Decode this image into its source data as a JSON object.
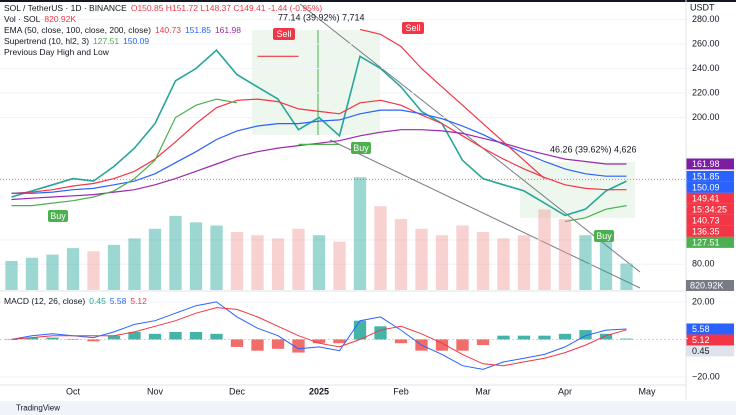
{
  "header": {
    "symbol": "SOL / TetherUS · 1D · BINANCE",
    "ohlc": "O150.85 H151.72 L148.37 C149.41 -1.44 (-0.95%)",
    "volume_name": "Vol · SOL",
    "volume_value": "820.92K",
    "ema_name": "EMA (50, close, 100, close, 200, close)",
    "ema_values": [
      "140.73",
      "151.85",
      "161.98"
    ],
    "supertrend_name": "Supertrend (10, hl2, 3)",
    "supertrend_values": [
      "127.51",
      "150.09"
    ],
    "prev_day": "Previous Day High and Low",
    "currency": "USDT",
    "countdown": "15:34:25",
    "footer": "TradingView"
  },
  "annotations": {
    "measure_1": "77.14 (39.92%) 7,714",
    "measure_2": "46.26 (39.62%) 4,626",
    "sell": "Sell",
    "buy": "Buy"
  },
  "chart_data": [
    {
      "type": "line",
      "categories": [
        null,
        null,
        null,
        "Oct",
        null,
        null,
        null,
        "Nov",
        null,
        null,
        null,
        "Dec",
        null,
        null,
        null,
        "2025",
        null,
        null,
        null,
        "Feb",
        null,
        null,
        null,
        "Mar",
        null,
        null,
        null,
        "Apr",
        null,
        null,
        null,
        "May"
      ],
      "series": [
        {
          "name": "SOL",
          "color": "#26a69a",
          "width": 1.6,
          "values": [
            135,
            140,
            145,
            150,
            148,
            160,
            175,
            195,
            230,
            240,
            255,
            235,
            225,
            215,
            190,
            200,
            185,
            250,
            240,
            225,
            205,
            195,
            165,
            150,
            145,
            140,
            130,
            120,
            125,
            140,
            148,
            null
          ]
        },
        {
          "name": "EMA 50",
          "color": "#f23645",
          "width": 1.2,
          "values": [
            138,
            139,
            141,
            144,
            146,
            150,
            156,
            166,
            180,
            195,
            208,
            214,
            215,
            213,
            207,
            205,
            203,
            212,
            214,
            210,
            202,
            195,
            185,
            175,
            166,
            158,
            151,
            145,
            142,
            141,
            141,
            null
          ]
        },
        {
          "name": "EMA 100",
          "color": "#2962ff",
          "width": 1.2,
          "values": [
            138,
            138,
            139,
            141,
            142,
            145,
            148,
            154,
            163,
            172,
            182,
            189,
            193,
            195,
            195,
            197,
            198,
            203,
            206,
            206,
            203,
            199,
            193,
            186,
            178,
            171,
            164,
            158,
            154,
            152,
            152,
            null
          ]
        },
        {
          "name": "EMA 200",
          "color": "#9c27b0",
          "width": 1.2,
          "values": [
            133,
            134,
            135,
            136,
            137,
            139,
            141,
            145,
            150,
            156,
            162,
            168,
            172,
            175,
            177,
            179,
            181,
            185,
            188,
            190,
            190,
            189,
            187,
            183,
            179,
            174,
            170,
            166,
            164,
            162,
            162,
            null
          ]
        },
        {
          "name": "Supertrend up",
          "color": "#4caf50",
          "width": 1.2,
          "values": [
            128,
            128,
            130,
            132,
            135,
            140,
            150,
            165,
            200,
            210,
            215,
            212,
            null,
            null,
            178,
            178,
            178,
            null,
            null,
            null,
            null,
            null,
            null,
            null,
            null,
            null,
            null,
            115,
            118,
            125,
            128,
            null
          ]
        },
        {
          "name": "Supertrend down",
          "color": "#f23645",
          "width": 1.2,
          "values": [
            null,
            null,
            null,
            null,
            null,
            null,
            null,
            null,
            null,
            null,
            null,
            null,
            250,
            250,
            250,
            null,
            null,
            272,
            268,
            258,
            240,
            225,
            210,
            195,
            180,
            165,
            150,
            null,
            null,
            null,
            null,
            null
          ]
        },
        {
          "name": "Volume",
          "type": "bar",
          "axis": "y2",
          "color": "#26a69a",
          "down_color": "#ef9a9a",
          "values": [
            900,
            1000,
            1100,
            1300,
            1200,
            1400,
            1600,
            1900,
            2300,
            2100,
            2000,
            1800,
            1700,
            1600,
            1900,
            1700,
            1500,
            3500,
            2600,
            2200,
            1900,
            1700,
            2000,
            1800,
            1600,
            1700,
            2500,
            2200,
            1700,
            1500,
            820.92,
            null
          ]
        }
      ],
      "ylim": [
        59,
        296
      ],
      "y2lim": [
        0,
        9000
      ],
      "yticks": [
        {
          "value": 280,
          "label": "280.00"
        },
        {
          "value": 260,
          "label": "260.00"
        },
        {
          "value": 240,
          "label": "240.00"
        },
        {
          "value": 220,
          "label": "220.00"
        },
        {
          "value": 200,
          "label": "200.00"
        },
        {
          "value": 100,
          "label": "100.00"
        },
        {
          "value": 80,
          "label": "80.00"
        }
      ],
      "last_values": [
        {
          "value": 161.98,
          "label": "161.98",
          "color": "#7b1fa2"
        },
        {
          "value": 151.85,
          "label": "151.85",
          "color": "#2962ff"
        },
        {
          "value": 150.09,
          "label": "150.09",
          "color": "#2962ff"
        },
        {
          "value": 149.41,
          "label": "149.41",
          "color": "#f23645"
        },
        {
          "value": 140.73,
          "label": "140.73",
          "color": "#f23645"
        },
        {
          "value": 136.35,
          "label": "136.35",
          "color": "#f23645"
        },
        {
          "value": 127.51,
          "label": "127.51",
          "color": "#4caf50"
        }
      ]
    },
    {
      "type": "line",
      "title": "MACD (12, 26, close)",
      "categories": [
        null,
        null,
        null,
        "Oct",
        null,
        null,
        null,
        "Nov",
        null,
        null,
        null,
        "Dec",
        null,
        null,
        null,
        "2025",
        null,
        null,
        null,
        "Feb",
        null,
        null,
        null,
        "Mar",
        null,
        null,
        null,
        "Apr",
        null,
        null,
        null,
        "May"
      ],
      "series": [
        {
          "name": "Histogram",
          "type": "bar",
          "color": "#26a69a",
          "down_color": "#ef5350",
          "values": [
            0,
            1,
            1,
            0,
            -1,
            2,
            4,
            3,
            4,
            4,
            3,
            -4,
            -6,
            -5,
            -7,
            -2,
            -2,
            10,
            7,
            -2,
            -6,
            -6,
            -6,
            -3,
            2,
            2,
            2,
            3,
            5,
            3,
            0.45,
            null
          ]
        },
        {
          "name": "MACD",
          "color": "#2962ff",
          "width": 1,
          "values": [
            0,
            2,
            3,
            2,
            1,
            4,
            8,
            10,
            14,
            18,
            20,
            12,
            6,
            2,
            -5,
            -4,
            -6,
            10,
            12,
            5,
            -3,
            -8,
            -14,
            -16,
            -12,
            -10,
            -8,
            -4,
            2,
            5,
            5.58,
            null
          ]
        },
        {
          "name": "Signal",
          "color": "#f23645",
          "width": 1,
          "values": [
            0,
            1,
            2,
            2,
            2,
            2,
            4,
            7,
            10,
            14,
            17,
            16,
            12,
            7,
            2,
            -2,
            -4,
            0,
            5,
            7,
            3,
            -2,
            -8,
            -13,
            -14,
            -12,
            -10,
            -7,
            -3,
            2,
            5.12,
            null
          ]
        }
      ],
      "ylim": [
        -24.3,
        23.7
      ],
      "yticks": [
        {
          "value": 20,
          "label": "20.00"
        },
        {
          "value": -20,
          "label": "−20.00"
        }
      ],
      "last_values": [
        {
          "value": 5.58,
          "label": "5.58",
          "color": "#2962ff"
        },
        {
          "value": 5.12,
          "label": "5.12",
          "color": "#f23645"
        },
        {
          "value": 0.45,
          "label": "0.45",
          "color": "#e0e3eb"
        }
      ]
    }
  ]
}
